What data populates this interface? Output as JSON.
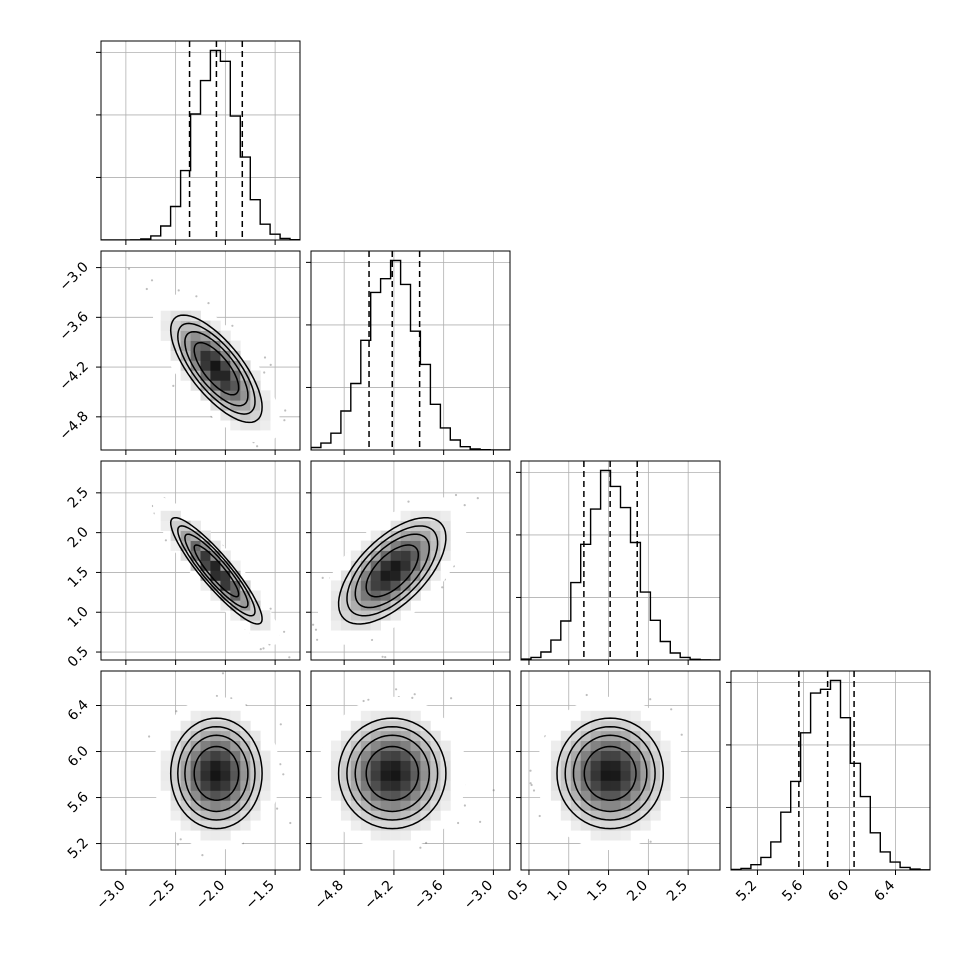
{
  "chart_data": {
    "type": "corner",
    "description": "Corner plot of 4 parameters: 1D marginal histograms on the diagonal with dashed quantile lines, 2D density (scatter + shaded histogram + contours) below the diagonal",
    "parameters": [
      {
        "index": 0,
        "range": [
          -3.25,
          -1.25
        ],
        "ticks": [
          "−3.0",
          "−2.5",
          "−2.0",
          "−1.5"
        ],
        "tick_values": [
          -3.0,
          -2.5,
          -2.0,
          -1.5
        ],
        "mean": -2.09,
        "std": 0.22,
        "quantiles": [
          -2.36,
          -2.09,
          -1.83
        ]
      },
      {
        "index": 1,
        "range": [
          -5.2,
          -2.8
        ],
        "ticks": [
          "−4.8",
          "−4.2",
          "−3.6",
          "−3.0"
        ],
        "tick_values": [
          -4.8,
          -4.2,
          -3.6,
          -3.0
        ],
        "mean": -4.22,
        "std": 0.31,
        "quantiles": [
          -4.5,
          -4.22,
          -3.89
        ]
      },
      {
        "index": 2,
        "range": [
          0.4,
          2.9
        ],
        "ticks": [
          "0.5",
          "1.0",
          "1.5",
          "2.0",
          "2.5"
        ],
        "tick_values": [
          0.5,
          1.0,
          1.5,
          2.0,
          2.5
        ],
        "mean": 1.52,
        "std": 0.32,
        "quantiles": [
          1.19,
          1.52,
          1.86
        ]
      },
      {
        "index": 3,
        "range": [
          4.97,
          6.7
        ],
        "ticks": [
          "5.2",
          "5.6",
          "6.0",
          "6.4"
        ],
        "tick_values": [
          5.2,
          5.6,
          6.0,
          6.4
        ],
        "mean": 5.81,
        "std": 0.23,
        "quantiles": [
          5.56,
          5.81,
          6.04
        ]
      }
    ],
    "correlations": {
      "1_0": -0.72,
      "2_0": -0.9,
      "2_1": 0.62,
      "3_0": 0.0,
      "3_1": 0.0,
      "3_2": 0.0
    },
    "histogram_bins": 20,
    "grid": true,
    "colors": {
      "line": "#000000",
      "scatter": "#6e6e6e",
      "grid": "#b0b0b0"
    }
  }
}
